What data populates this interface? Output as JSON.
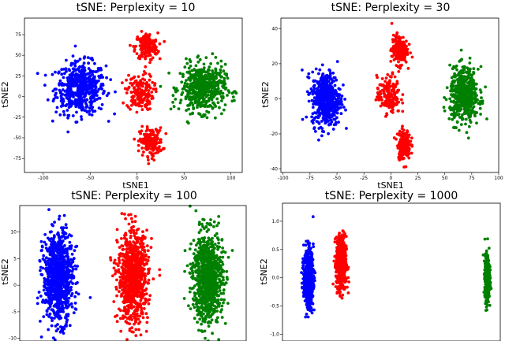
{
  "chart_data": [
    {
      "type": "scatter",
      "title": "tSNE: Perplexity = 10",
      "xlabel": "tSNE1",
      "ylabel": "tSNE2",
      "xlim": [
        -120,
        112
      ],
      "ylim": [
        -92,
        95
      ],
      "xticks": [
        "-100",
        "-50",
        "0",
        "50",
        "100"
      ],
      "xtick_values": [
        -100,
        -50,
        0,
        50,
        100
      ],
      "yticks": [
        "75",
        "50",
        "25",
        "0",
        "-25",
        "-50",
        "-75"
      ],
      "ytick_values": [
        75,
        50,
        25,
        0,
        -25,
        -50,
        -75
      ],
      "grid": false,
      "series": [
        {
          "color": "#0000ff",
          "clusters": [
            {
              "cx": -60,
              "cy": 10,
              "sx": 22,
              "sy": 26
            }
          ],
          "count": 520
        },
        {
          "color": "#ff0000",
          "clusters": [
            {
              "cx": 10,
              "cy": 60,
              "sx": 10,
              "sy": 14
            },
            {
              "cx": 3,
              "cy": 5,
              "sx": 12,
              "sy": 18
            },
            {
              "cx": 15,
              "cy": -55,
              "sx": 10,
              "sy": 14
            }
          ],
          "count": 520
        },
        {
          "color": "#008000",
          "clusters": [
            {
              "cx": 70,
              "cy": 10,
              "sx": 20,
              "sy": 24
            }
          ],
          "count": 520
        }
      ]
    },
    {
      "type": "scatter",
      "title": "tSNE: Perplexity = 30",
      "xlabel": "tSNE1",
      "ylabel": "tSNE2",
      "xlim": [
        -102,
        100
      ],
      "ylim": [
        -42,
        46
      ],
      "xticks": [
        "-100",
        "-75",
        "-50",
        "-25",
        "0",
        "25",
        "50",
        "75",
        "100"
      ],
      "xtick_values": [
        -100,
        -75,
        -50,
        -25,
        0,
        25,
        50,
        75,
        100
      ],
      "yticks": [
        "40",
        "20",
        "0",
        "-20",
        "-40"
      ],
      "ytick_values": [
        40,
        20,
        0,
        -20,
        -40
      ],
      "grid": false,
      "series": [
        {
          "color": "#0000ff",
          "clusters": [
            {
              "cx": -60,
              "cy": 0,
              "sx": 11,
              "sy": 13
            }
          ],
          "count": 520
        },
        {
          "color": "#ff0000",
          "clusters": [
            {
              "cx": 8,
              "cy": 28,
              "sx": 6,
              "sy": 7
            },
            {
              "cx": -2,
              "cy": 2,
              "sx": 9,
              "sy": 9
            },
            {
              "cx": 12,
              "cy": -26,
              "sx": 5,
              "sy": 7
            }
          ],
          "count": 520
        },
        {
          "color": "#008000",
          "clusters": [
            {
              "cx": 68,
              "cy": 2,
              "sx": 11,
              "sy": 13
            }
          ],
          "count": 520
        }
      ]
    },
    {
      "type": "scatter",
      "title": "tSNE: Perplexity = 100",
      "xlabel": "",
      "ylabel": "tSNE2",
      "xlim": [
        0,
        100
      ],
      "ylim": [
        -10.5,
        15
      ],
      "xticks": [],
      "xtick_values": [],
      "yticks": [
        "10",
        "5",
        "0",
        "-5",
        "-10"
      ],
      "ytick_values": [
        10,
        5,
        0,
        -5,
        -10
      ],
      "grid": false,
      "series": [
        {
          "color": "#0000ff",
          "clusters": [
            {
              "cx": 17,
              "cy": 1.5,
              "sx": 5.5,
              "sy": 7
            }
          ],
          "count": 900
        },
        {
          "color": "#ff0000",
          "clusters": [
            {
              "cx": 50,
              "cy": 1.5,
              "sx": 5.5,
              "sy": 7
            }
          ],
          "count": 900
        },
        {
          "color": "#008000",
          "clusters": [
            {
              "cx": 83,
              "cy": 1.5,
              "sx": 5.5,
              "sy": 7
            }
          ],
          "count": 900
        }
      ]
    },
    {
      "type": "scatter",
      "title": "tSNE: Perplexity = 1000",
      "xlabel": "",
      "ylabel": "tSNE2",
      "xlim": [
        0,
        100
      ],
      "ylim": [
        -1.12,
        1.32
      ],
      "xticks": [],
      "xtick_values": [],
      "yticks": [
        "1.0",
        "0.5",
        "0.0",
        "-0.5",
        "-1.0"
      ],
      "ytick_values": [
        1.0,
        0.5,
        0.0,
        -0.5,
        -1.0
      ],
      "grid": false,
      "series": [
        {
          "color": "#0000ff",
          "clusters": [
            {
              "cx": 12,
              "cy": 0.0,
              "sx": 1.8,
              "sy": 0.42
            }
          ],
          "count": 600
        },
        {
          "color": "#ff0000",
          "clusters": [
            {
              "cx": 27,
              "cy": 0.25,
              "sx": 1.9,
              "sy": 0.4
            }
          ],
          "count": 600
        },
        {
          "color": "#008000",
          "clusters": [
            {
              "cx": 94,
              "cy": 0.0,
              "sx": 0.9,
              "sy": 0.32
            }
          ],
          "count": 500
        }
      ]
    }
  ]
}
